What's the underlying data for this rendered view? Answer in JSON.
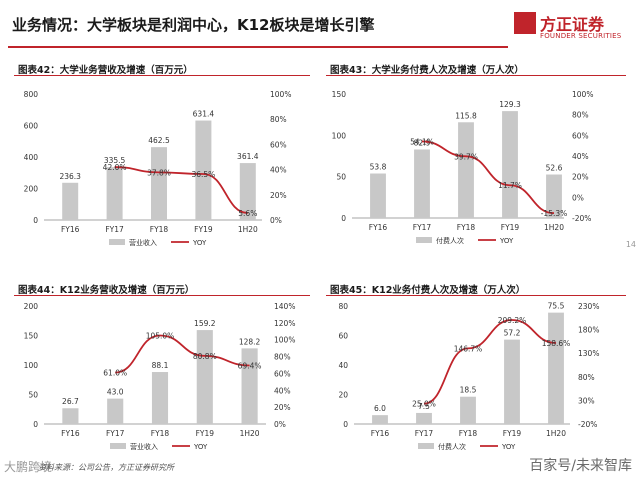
{
  "header": {
    "title": "业务情况：大学板块是利润中心，K12板块是增长引擎"
  },
  "logo": {
    "name": "方正证券",
    "sub": "FOUNDER SECURITIES"
  },
  "colors": {
    "bar": "#c8c8c8",
    "line": "#c0242b",
    "axis": "#888888",
    "text": "#333333",
    "brand": "#c0242b"
  },
  "panels": [
    {
      "title": "图表42：大学业务营收及增速（百万元）"
    },
    {
      "title": "图表43：大学业务付费人次及增速（万人次）"
    },
    {
      "title": "图表44：K12业务营收及增速（百万元）"
    },
    {
      "title": "图表45：K12业务付费人次及增速（万人次）"
    }
  ],
  "chart_data": [
    {
      "type": "bar",
      "categories": [
        "FY16",
        "FY17",
        "FY18",
        "FY19",
        "1H20"
      ],
      "series": [
        {
          "name": "营业收入",
          "kind": "bar",
          "values": [
            236.3,
            335.5,
            462.5,
            631.4,
            361.4
          ]
        },
        {
          "name": "YOY",
          "kind": "line",
          "values": [
            null,
            42.0,
            37.8,
            36.5,
            5.6
          ],
          "labels": [
            "",
            "42.0%",
            "37.8%",
            "36.5%",
            "5.6%"
          ]
        }
      ],
      "bar_labels": [
        "236.3",
        "335.5",
        "462.5",
        "631.4",
        "361.4"
      ],
      "ylim": [
        0,
        800
      ],
      "yticks": [
        "0",
        "200",
        "400",
        "600",
        "800"
      ],
      "y2lim": [
        0,
        100
      ],
      "y2ticks": [
        "0%",
        "20%",
        "40%",
        "60%",
        "80%",
        "100%"
      ]
    },
    {
      "type": "bar",
      "categories": [
        "FY16",
        "FY17",
        "FY18",
        "FY19",
        "1H20"
      ],
      "series": [
        {
          "name": "付费人次",
          "kind": "bar",
          "values": [
            53.8,
            82.9,
            115.8,
            129.3,
            52.6
          ]
        },
        {
          "name": "YOY",
          "kind": "line",
          "values": [
            null,
            54.1,
            39.7,
            11.7,
            -15.3
          ],
          "labels": [
            "",
            "54.1%",
            "39.7%",
            "11.7%",
            "-15.3%"
          ]
        }
      ],
      "bar_labels": [
        "53.8",
        "82.9",
        "115.8",
        "129.3",
        "52.6"
      ],
      "ylim": [
        0,
        150
      ],
      "yticks": [
        "0",
        "50",
        "100",
        "150"
      ],
      "y2lim": [
        -20,
        100
      ],
      "y2ticks": [
        "-20%",
        "0%",
        "20%",
        "40%",
        "60%",
        "80%",
        "100%"
      ]
    },
    {
      "type": "bar",
      "categories": [
        "FY16",
        "FY17",
        "FY18",
        "FY19",
        "1H20"
      ],
      "series": [
        {
          "name": "营业收入",
          "kind": "bar",
          "values": [
            26.7,
            43.0,
            88.1,
            159.2,
            128.2
          ]
        },
        {
          "name": "YOY",
          "kind": "line",
          "values": [
            null,
            61.0,
            105.0,
            80.8,
            69.4
          ],
          "labels": [
            "",
            "61.0%",
            "105.0%",
            "80.8%",
            "69.4%"
          ]
        }
      ],
      "bar_labels": [
        "26.7",
        "43.0",
        "88.1",
        "159.2",
        "128.2"
      ],
      "ylim": [
        0,
        200
      ],
      "yticks": [
        "0",
        "50",
        "100",
        "150",
        "200"
      ],
      "y2lim": [
        0,
        140
      ],
      "y2ticks": [
        "0%",
        "20%",
        "40%",
        "60%",
        "80%",
        "100%",
        "120%",
        "140%"
      ]
    },
    {
      "type": "bar",
      "categories": [
        "FY16",
        "FY17",
        "FY18",
        "FY19",
        "1H20"
      ],
      "series": [
        {
          "name": "付费人次",
          "kind": "bar",
          "values": [
            6.0,
            7.5,
            18.5,
            57.2,
            75.5
          ]
        },
        {
          "name": "YOY",
          "kind": "line",
          "values": [
            null,
            25.0,
            146.7,
            209.2,
            158.6
          ],
          "labels": [
            "",
            "25.0%",
            "146.7%",
            "209.2%",
            "158.6%"
          ]
        }
      ],
      "bar_labels": [
        "6.0",
        "7.5",
        "18.5",
        "57.2",
        "75.5"
      ],
      "ylim": [
        0,
        80
      ],
      "yticks": [
        "0",
        "20",
        "40",
        "60",
        "80"
      ],
      "y2lim": [
        -20,
        240
      ],
      "y2ticks": [
        "-20%",
        "30%",
        "80%",
        "130%",
        "180%",
        "230%"
      ]
    }
  ],
  "footer": {
    "source": "资料来源：公司公告，方正证券研究所",
    "watermark_left": "大鹏跨境",
    "watermark_right": "百家号/未来智库"
  }
}
